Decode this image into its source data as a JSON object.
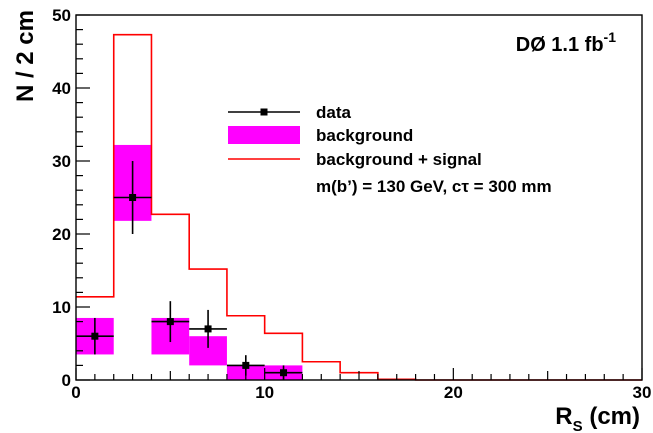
{
  "chart_data": {
    "type": "bar",
    "xlabel": "R",
    "xlabel_sub": "S",
    "xlabel_unit": " (cm)",
    "ylabel": "N / 2 cm",
    "xlim": [
      0,
      30
    ],
    "ylim": [
      0,
      50
    ],
    "x_ticks": [
      0,
      10,
      20,
      30
    ],
    "y_ticks": [
      0,
      10,
      20,
      30,
      40,
      50
    ],
    "annotation": {
      "text": "DØ 1.1 fb",
      "sup": "-1"
    },
    "legend_placement": "upper-middle",
    "legend": [
      {
        "name": "data",
        "kind": "marker"
      },
      {
        "name": "background",
        "kind": "fill"
      },
      {
        "name": "background + signal",
        "kind": "line"
      },
      {
        "name": "m(b’) = 130 GeV, cτ = 300 mm",
        "kind": "none"
      }
    ],
    "bin_edges": [
      0,
      2,
      4,
      6,
      8,
      10,
      12,
      14,
      16,
      18,
      20,
      22,
      24,
      26,
      28,
      30
    ],
    "series": [
      {
        "name": "data",
        "x": [
          1,
          3,
          5,
          7,
          9,
          11
        ],
        "values": [
          6,
          25,
          8,
          7,
          2,
          1
        ],
        "errors": [
          2.5,
          5,
          2.8,
          2.6,
          1.4,
          1
        ],
        "color": "#000000"
      },
      {
        "name": "background",
        "bins": [
          [
            0,
            2
          ],
          [
            2,
            4
          ],
          [
            4,
            6
          ],
          [
            6,
            8
          ],
          [
            8,
            10
          ],
          [
            10,
            12
          ]
        ],
        "low": [
          3.5,
          21.8,
          3.5,
          2,
          0,
          0
        ],
        "high": [
          8.5,
          32.2,
          8.5,
          6,
          2,
          2
        ],
        "color": "#ff00ff"
      },
      {
        "name": "background + signal",
        "values": [
          11.4,
          47.3,
          22.7,
          15.2,
          8.8,
          6.4,
          2.5,
          1,
          0.1,
          0,
          0,
          0,
          0,
          0,
          0
        ],
        "color": "#ff0000"
      }
    ]
  }
}
